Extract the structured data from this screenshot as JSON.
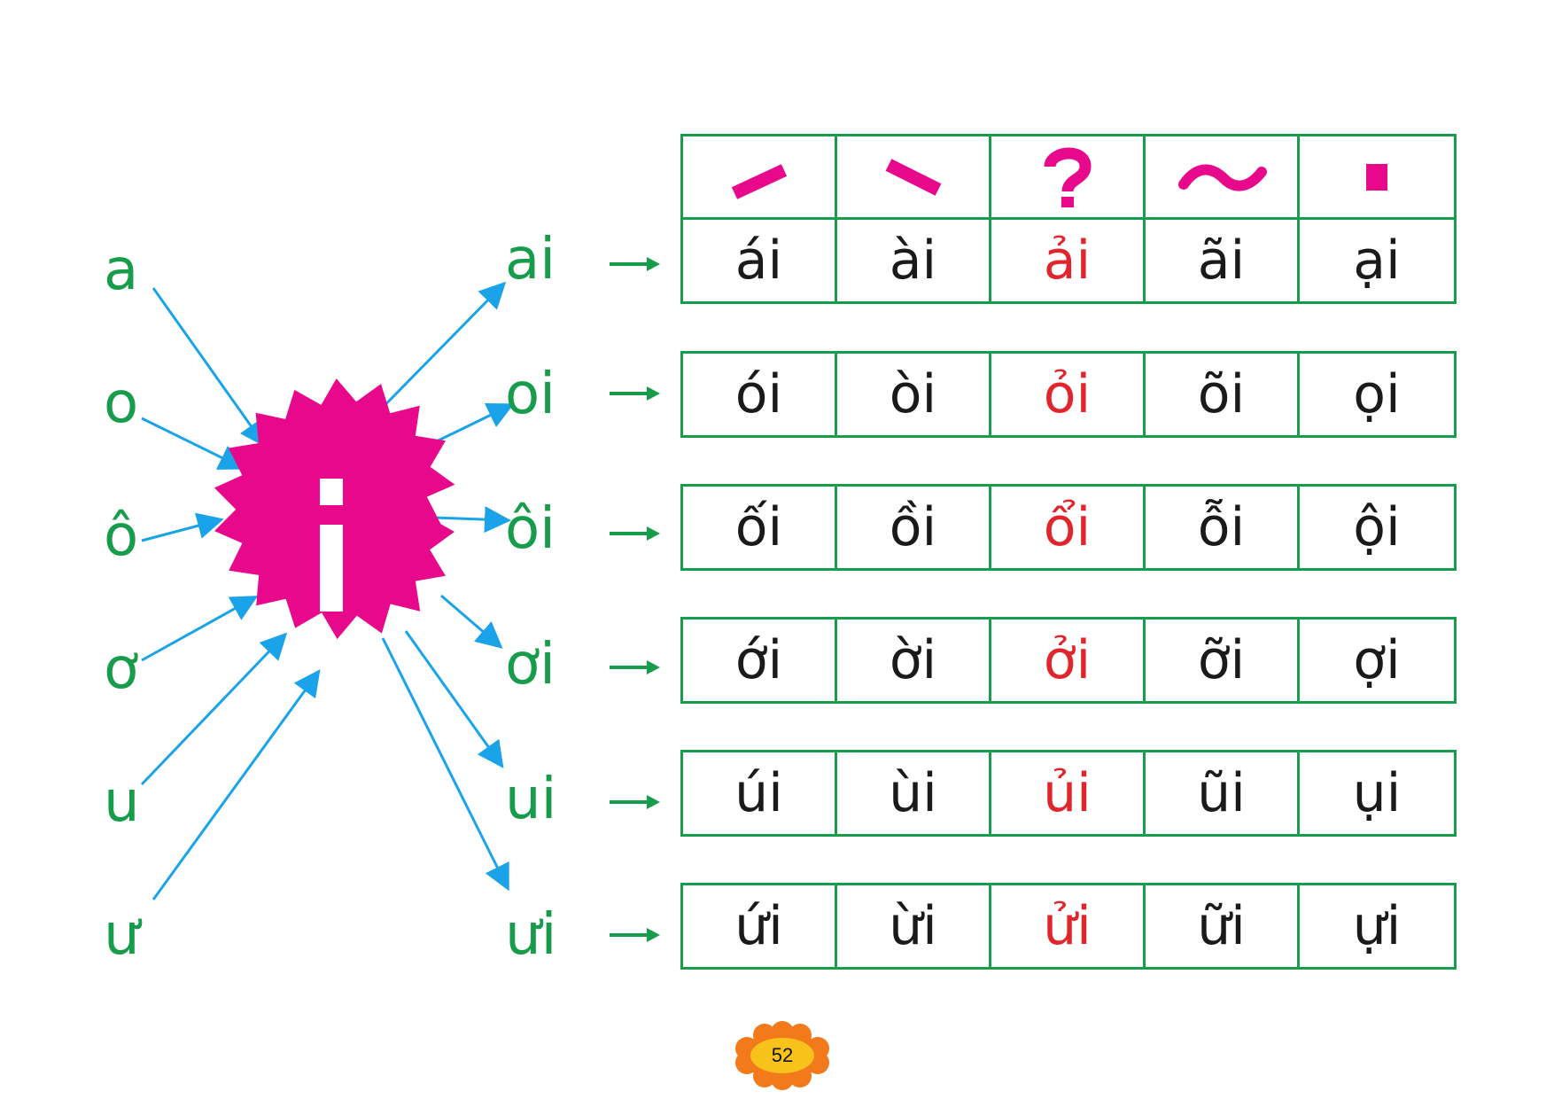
{
  "colors": {
    "green": "#169c4a",
    "magenta": "#e8088c",
    "blue_arrow": "#1aa3e8",
    "red": "#e0262c",
    "badge_orange": "#f27a1a"
  },
  "center_letter": "i",
  "vowels": [
    "a",
    "o",
    "ô",
    "ơ",
    "u",
    "ư"
  ],
  "syllables": [
    "ai",
    "oi",
    "ôi",
    "ơi",
    "ui",
    "ưi"
  ],
  "tone_marks": [
    "sac-mark-icon",
    "huyen-mark-icon",
    "hoi-mark-icon",
    "nga-mark-icon",
    "nang-mark-icon"
  ],
  "tone_rows": [
    [
      "ái",
      "ài",
      "ải",
      "ãi",
      "ại"
    ],
    [
      "ói",
      "òi",
      "ỏi",
      "õi",
      "ọi"
    ],
    [
      "ối",
      "ồi",
      "ổi",
      "ỗi",
      "ội"
    ],
    [
      "ới",
      "ời",
      "ởi",
      "ỡi",
      "ợi"
    ],
    [
      "úi",
      "ùi",
      "ủi",
      "ũi",
      "ụi"
    ],
    [
      "ứi",
      "ừi",
      "ửi",
      "ữi",
      "ựi"
    ]
  ],
  "page_number": "52"
}
